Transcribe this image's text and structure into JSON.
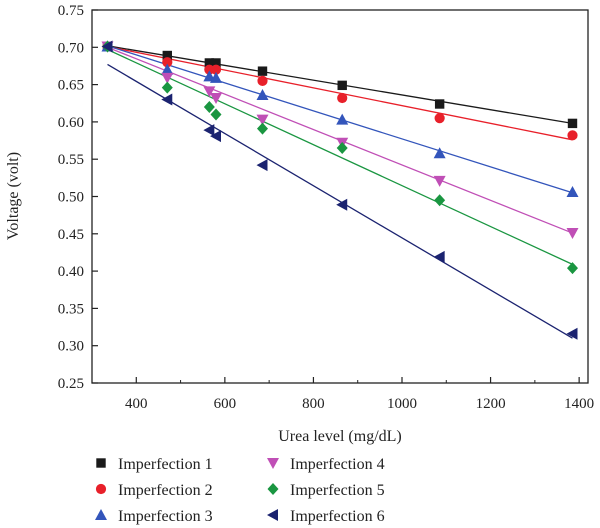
{
  "chart_data": {
    "type": "scatter",
    "title": "",
    "xlabel": "Urea level (mg/dL)",
    "ylabel": "Voltage (volt)",
    "xlim": [
      300,
      1420
    ],
    "ylim": [
      0.25,
      0.75
    ],
    "x_ticks": [
      400,
      600,
      800,
      1000,
      1200,
      1400
    ],
    "x_tick_labels": [
      "400",
      "600",
      "800",
      "1000",
      "1200",
      "1400"
    ],
    "y_ticks": [
      0.25,
      0.3,
      0.35,
      0.4,
      0.45,
      0.5,
      0.55,
      0.6,
      0.65,
      0.7,
      0.75
    ],
    "y_tick_labels": [
      "0.25",
      "0.30",
      "0.35",
      "0.40",
      "0.45",
      "0.50",
      "0.55",
      "0.60",
      "0.65",
      "0.70",
      "0.75"
    ],
    "grid": false,
    "legend_position": "bottom",
    "series": [
      {
        "name": "Imperfection 1",
        "marker": "square",
        "color": "#1a1a1a",
        "points": [
          [
            335,
            0.701
          ],
          [
            470,
            0.689
          ],
          [
            565,
            0.679
          ],
          [
            580,
            0.679
          ],
          [
            685,
            0.668
          ],
          [
            865,
            0.649
          ],
          [
            1085,
            0.624
          ],
          [
            1385,
            0.598
          ]
        ],
        "fit": [
          [
            335,
            0.702
          ],
          [
            1385,
            0.598
          ]
        ]
      },
      {
        "name": "Imperfection 2",
        "marker": "circle",
        "color": "#e8202a",
        "points": [
          [
            335,
            0.701
          ],
          [
            470,
            0.68
          ],
          [
            565,
            0.67
          ],
          [
            580,
            0.67
          ],
          [
            685,
            0.655
          ],
          [
            865,
            0.632
          ],
          [
            1085,
            0.605
          ],
          [
            1385,
            0.582
          ]
        ],
        "fit": [
          [
            335,
            0.701
          ],
          [
            1385,
            0.576
          ]
        ]
      },
      {
        "name": "Imperfection 3",
        "marker": "triangle-up",
        "color": "#3355bb",
        "points": [
          [
            335,
            0.701
          ],
          [
            470,
            0.67
          ],
          [
            565,
            0.661
          ],
          [
            580,
            0.659
          ],
          [
            685,
            0.636
          ],
          [
            865,
            0.603
          ],
          [
            1085,
            0.558
          ],
          [
            1385,
            0.506
          ]
        ],
        "fit": [
          [
            335,
            0.702
          ],
          [
            1385,
            0.505
          ]
        ]
      },
      {
        "name": "Imperfection 4",
        "marker": "triangle-down",
        "color": "#c04fb6",
        "points": [
          [
            335,
            0.701
          ],
          [
            470,
            0.659
          ],
          [
            565,
            0.641
          ],
          [
            580,
            0.632
          ],
          [
            685,
            0.603
          ],
          [
            865,
            0.572
          ],
          [
            1085,
            0.521
          ],
          [
            1385,
            0.451
          ]
        ],
        "fit": [
          [
            335,
            0.7
          ],
          [
            1385,
            0.451
          ]
        ]
      },
      {
        "name": "Imperfection 5",
        "marker": "diamond",
        "color": "#1a9641",
        "points": [
          [
            335,
            0.701
          ],
          [
            470,
            0.646
          ],
          [
            565,
            0.62
          ],
          [
            580,
            0.61
          ],
          [
            685,
            0.591
          ],
          [
            865,
            0.565
          ],
          [
            1085,
            0.495
          ],
          [
            1385,
            0.404
          ]
        ],
        "fit": [
          [
            335,
            0.697
          ],
          [
            1385,
            0.409
          ]
        ]
      },
      {
        "name": "Imperfection 6",
        "marker": "triangle-left",
        "color": "#1b2370",
        "points": [
          [
            335,
            0.701
          ],
          [
            470,
            0.63
          ],
          [
            565,
            0.589
          ],
          [
            580,
            0.581
          ],
          [
            685,
            0.542
          ],
          [
            865,
            0.489
          ],
          [
            1085,
            0.419
          ],
          [
            1385,
            0.316
          ]
        ],
        "fit": [
          [
            335,
            0.677
          ],
          [
            1385,
            0.31
          ]
        ]
      }
    ]
  }
}
